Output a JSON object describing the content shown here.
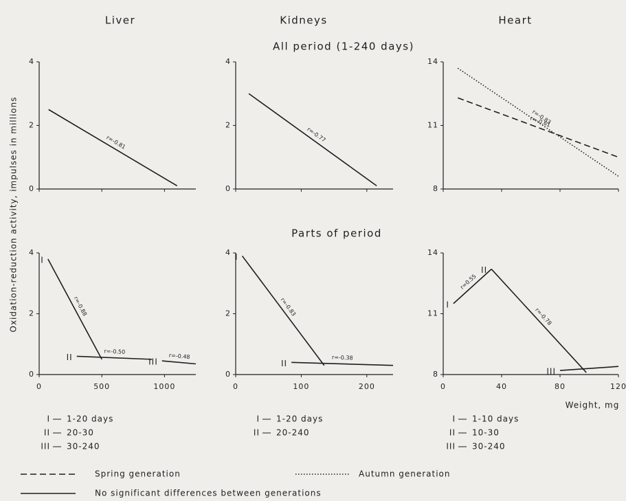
{
  "columns": [
    "Liver",
    "Kidneys",
    "Heart"
  ],
  "row_titles": [
    "All period (1-240 days)",
    "Parts of period"
  ],
  "y_label": "Oxidation-reduction activity, impulses in millions",
  "x_label": "Weight, mg",
  "period_legends": [
    [
      {
        "mark": "I",
        "text": "1-20 days"
      },
      {
        "mark": "II",
        "text": "20-30"
      },
      {
        "mark": "III",
        "text": "30-240"
      }
    ],
    [
      {
        "mark": "I",
        "text": "1-20 days"
      },
      {
        "mark": "II",
        "text": "20-240"
      }
    ],
    [
      {
        "mark": "I",
        "text": "1-10 days"
      },
      {
        "mark": "II",
        "text": "10-30"
      },
      {
        "mark": "III",
        "text": "30-240"
      }
    ]
  ],
  "style_legend": [
    {
      "style": "dashed",
      "text": "Spring generation"
    },
    {
      "style": "dotted",
      "text": "Autumn generation"
    },
    {
      "style": "solid",
      "text": "No significant differences between generations"
    }
  ],
  "chart_data": [
    {
      "type": "line",
      "xlim": [
        0,
        1250
      ],
      "xticks": [
        0,
        500,
        1000
      ],
      "xtick_labels": false,
      "ylim": [
        0,
        4
      ],
      "yticks": [
        0,
        2,
        4
      ],
      "series": [
        {
          "style": "solid",
          "color": "#1e1e1e",
          "x": [
            75,
            1100
          ],
          "values": [
            2.5,
            0.1
          ],
          "annotation": "r=-0.81"
        }
      ]
    },
    {
      "type": "line",
      "xlim": [
        0,
        240
      ],
      "xticks": [
        0,
        100,
        200
      ],
      "xtick_labels": false,
      "ylim": [
        0,
        4
      ],
      "yticks": [
        0,
        2,
        4
      ],
      "series": [
        {
          "style": "solid",
          "color": "#1e1e1e",
          "x": [
            20,
            215
          ],
          "values": [
            3.0,
            0.1
          ],
          "annotation": "r=-0.77"
        }
      ]
    },
    {
      "type": "line",
      "xlim": [
        0,
        120
      ],
      "xticks": [
        0,
        40,
        80,
        120
      ],
      "xtick_labels": false,
      "ylim": [
        8,
        14
      ],
      "yticks": [
        8,
        11,
        14
      ],
      "series": [
        {
          "style": "dotted",
          "color": "#1e1e1e",
          "x": [
            10,
            120
          ],
          "values": [
            13.7,
            8.6
          ],
          "annotation": "r=-0.83"
        },
        {
          "style": "dashed",
          "color": "#1e1e1e",
          "x": [
            10,
            120
          ],
          "values": [
            12.3,
            9.5
          ],
          "annotation": "r=-0.61"
        }
      ]
    },
    {
      "type": "line",
      "xlim": [
        0,
        1250
      ],
      "xticks": [
        0,
        500,
        1000
      ],
      "xtick_labels": true,
      "ylim": [
        0,
        4
      ],
      "yticks": [
        0,
        2,
        4
      ],
      "series": [
        {
          "name": "I",
          "style": "solid",
          "color": "#1e1e1e",
          "x": [
            70,
            500
          ],
          "values": [
            3.8,
            0.5
          ],
          "annotation": "r=-0.88"
        },
        {
          "name": "II",
          "style": "solid",
          "color": "#1e1e1e",
          "x": [
            300,
            900
          ],
          "values": [
            0.6,
            0.5
          ],
          "annotation": "r=-0.50"
        },
        {
          "name": "III",
          "style": "solid",
          "color": "#1e1e1e",
          "x": [
            980,
            1250
          ],
          "values": [
            0.45,
            0.35
          ],
          "annotation": "r=-0.48"
        }
      ]
    },
    {
      "type": "line",
      "xlim": [
        0,
        240
      ],
      "xticks": [
        0,
        100,
        200
      ],
      "xtick_labels": true,
      "ylim": [
        0,
        4
      ],
      "yticks": [
        0,
        2,
        4
      ],
      "series": [
        {
          "name": "I",
          "style": "solid",
          "color": "#1e1e1e",
          "x": [
            10,
            135
          ],
          "values": [
            3.9,
            0.3
          ],
          "annotation": "r=-0.83"
        },
        {
          "name": "II",
          "style": "solid",
          "color": "#1e1e1e",
          "x": [
            85,
            240
          ],
          "values": [
            0.4,
            0.3
          ],
          "annotation": "r=-0.38"
        }
      ]
    },
    {
      "type": "line",
      "xlim": [
        0,
        120
      ],
      "xticks": [
        0,
        40,
        80,
        120
      ],
      "xtick_labels": true,
      "ylim": [
        8,
        14
      ],
      "yticks": [
        8,
        11,
        14
      ],
      "series": [
        {
          "name": "I",
          "style": "solid",
          "color": "#1e1e1e",
          "x": [
            7,
            33
          ],
          "values": [
            11.5,
            13.2
          ],
          "annotation": "r=0.55"
        },
        {
          "name": "II",
          "style": "solid",
          "color": "#1e1e1e",
          "x": [
            33,
            98
          ],
          "values": [
            13.2,
            8.1
          ],
          "annotation": "r=-0.78"
        },
        {
          "name": "III",
          "style": "solid",
          "color": "#1e1e1e",
          "x": [
            80,
            120
          ],
          "values": [
            8.2,
            8.4
          ]
        }
      ]
    }
  ]
}
